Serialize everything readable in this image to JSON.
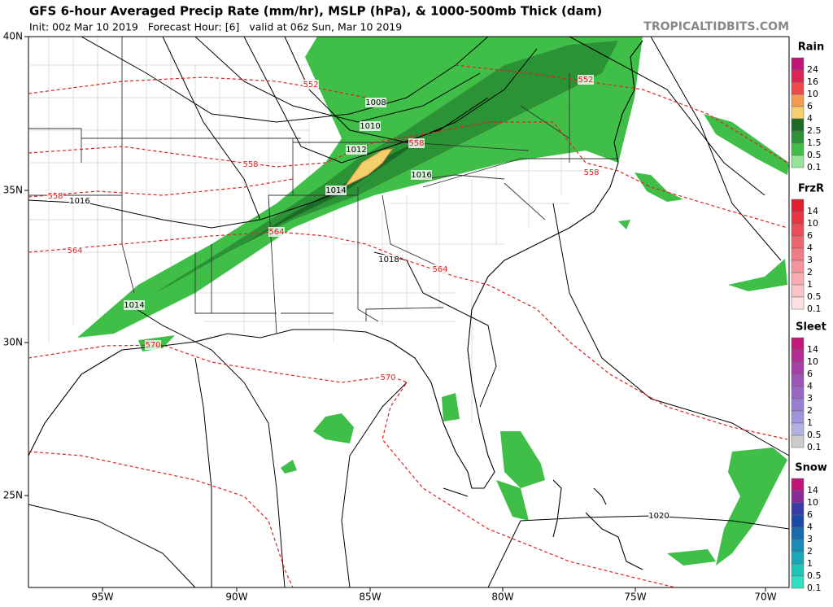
{
  "header": {
    "title": "GFS 6-hour Averaged Precip Rate (mm/hr), MSLP (hPa), & 1000-500mb Thick (dam)",
    "subtitle": "Init: 00z Mar 10 2019   Forecast Hour: [6]   valid at 06z Sun, Mar 10 2019",
    "source": "TROPICALTIDBITS.COM"
  },
  "axes": {
    "lat_labels": [
      "40N",
      "35N",
      "30N",
      "25N"
    ],
    "lon_labels": [
      "95W",
      "90W",
      "85W",
      "80W",
      "75W",
      "70W"
    ]
  },
  "contours": {
    "mslp_labels": [
      "1008",
      "1010",
      "1012",
      "1014",
      "1016",
      "1016",
      "1014",
      "1018",
      "1020"
    ],
    "thickness_labels": [
      "552",
      "552",
      "558",
      "558",
      "558",
      "558",
      "564",
      "564",
      "564",
      "570",
      "570"
    ]
  },
  "legend": [
    {
      "title": "Rain",
      "labels": [
        "24",
        "16",
        "10",
        "6",
        "4",
        "2.5",
        "1.5",
        "0.5",
        "0.1"
      ],
      "colors": [
        "#c0147a",
        "#dc2456",
        "#ee4a4a",
        "#f49a52",
        "#f4cf6a",
        "#1b6a26",
        "#2c9236",
        "#3fbf48",
        "#95e39a"
      ]
    },
    {
      "title": "FrzR",
      "labels": [
        "14",
        "10",
        "6",
        "4",
        "3",
        "2",
        "1",
        "0.5",
        "0.1"
      ],
      "colors": [
        "#e01e2e",
        "#e63644",
        "#ea4d5a",
        "#ee6470",
        "#f27c86",
        "#f5949c",
        "#f8acb2",
        "#fbc4c8",
        "#fde0e2"
      ]
    },
    {
      "title": "Sleet",
      "labels": [
        "14",
        "10",
        "6",
        "4",
        "3",
        "2",
        "1",
        "0.5",
        "0.1"
      ],
      "colors": [
        "#c2187e",
        "#b42c92",
        "#a640a6",
        "#9c54b6",
        "#9868c4",
        "#987ed0",
        "#a094da",
        "#b4b0e4",
        "#cccccc"
      ]
    },
    {
      "title": "Snow",
      "labels": [
        "14",
        "10",
        "6",
        "4",
        "3",
        "2",
        "1",
        "0.5",
        "0.1"
      ],
      "colors": [
        "#c0147a",
        "#8a2a9a",
        "#3a3aa8",
        "#1a4aa8",
        "#1a6ab0",
        "#1a8cb8",
        "#1aa8b8",
        "#20c4b8",
        "#30e0c0"
      ]
    }
  ]
}
